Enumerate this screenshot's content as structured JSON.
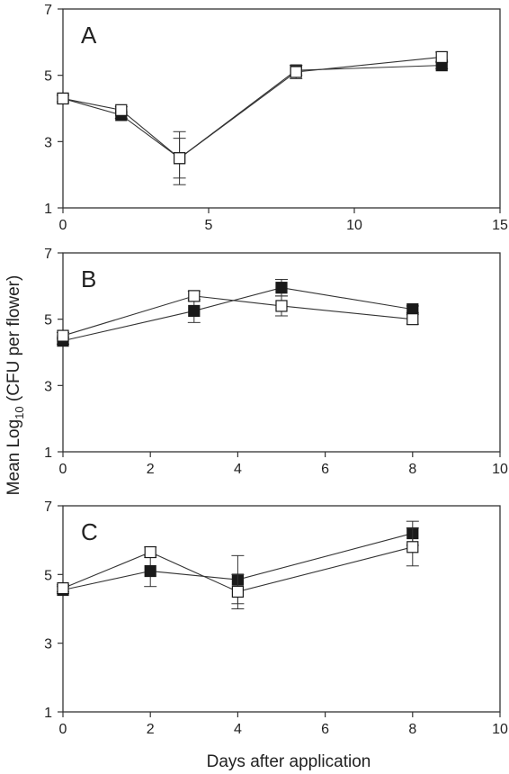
{
  "figure": {
    "ylabel_prefix": "Mean Log",
    "ylabel_sub": "10",
    "ylabel_suffix": " (CFU per flower)",
    "xlabel": "Days after application"
  },
  "chart_data": [
    {
      "type": "line",
      "panel_label": "A",
      "xlim": [
        0,
        15
      ],
      "ylim": [
        1,
        7
      ],
      "x_ticks": [
        0,
        5,
        10,
        15
      ],
      "y_ticks": [
        1,
        3,
        5,
        7
      ],
      "grid": false,
      "series": [
        {
          "marker": "filled-square",
          "x": [
            0,
            2,
            4,
            8,
            13
          ],
          "y": [
            4.3,
            3.8,
            2.5,
            5.15,
            5.3
          ],
          "err": [
            0.1,
            0.1,
            0.8,
            0.15,
            0.1
          ]
        },
        {
          "marker": "open-square",
          "x": [
            0,
            2,
            4,
            8,
            13
          ],
          "y": [
            4.3,
            3.95,
            2.5,
            5.1,
            5.55
          ],
          "err": [
            0.1,
            0.1,
            0.6,
            0.2,
            0.15
          ]
        }
      ]
    },
    {
      "type": "line",
      "panel_label": "B",
      "xlim": [
        0,
        10
      ],
      "ylim": [
        1,
        7
      ],
      "x_ticks": [
        0,
        2,
        4,
        6,
        8,
        10
      ],
      "y_ticks": [
        1,
        3,
        5,
        7
      ],
      "grid": false,
      "series": [
        {
          "marker": "filled-square",
          "x": [
            0,
            3,
            5,
            8
          ],
          "y": [
            4.35,
            5.25,
            5.95,
            5.3
          ],
          "err": [
            0.1,
            0.35,
            0.25,
            0.1
          ]
        },
        {
          "marker": "open-square",
          "x": [
            0,
            3,
            5,
            8
          ],
          "y": [
            4.5,
            5.7,
            5.4,
            5.0
          ],
          "err": [
            0.1,
            0.15,
            0.3,
            0.15
          ]
        }
      ]
    },
    {
      "type": "line",
      "panel_label": "C",
      "xlim": [
        0,
        10
      ],
      "ylim": [
        1,
        7
      ],
      "x_ticks": [
        0,
        2,
        4,
        6,
        8,
        10
      ],
      "y_ticks": [
        1,
        3,
        5,
        7
      ],
      "grid": false,
      "series": [
        {
          "marker": "filled-square",
          "x": [
            0,
            2,
            4,
            8
          ],
          "y": [
            4.55,
            5.1,
            4.85,
            6.2
          ],
          "err": [
            0.1,
            0.45,
            0.7,
            0.35
          ]
        },
        {
          "marker": "open-square",
          "x": [
            0,
            2,
            4,
            8
          ],
          "y": [
            4.6,
            5.65,
            4.5,
            5.8
          ],
          "err": [
            0.1,
            0.15,
            0.5,
            0.55
          ]
        }
      ]
    }
  ]
}
